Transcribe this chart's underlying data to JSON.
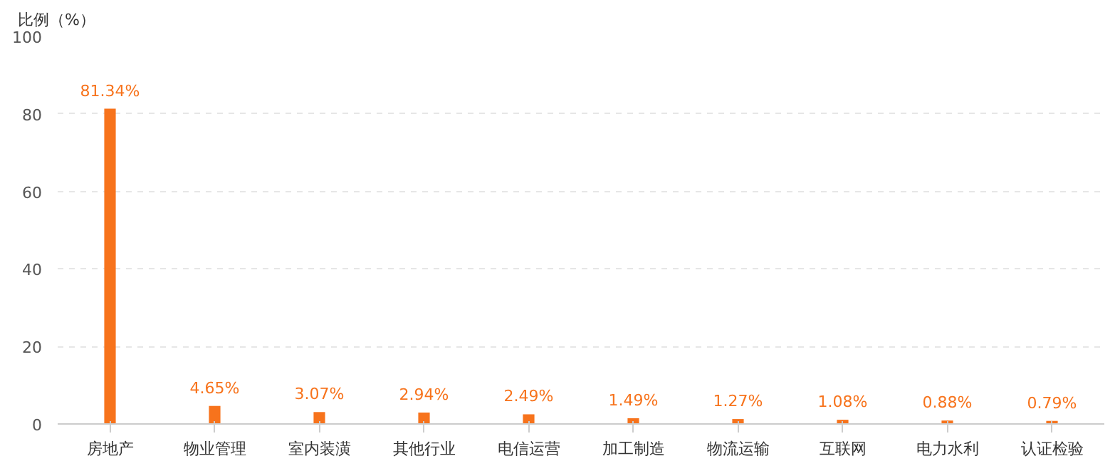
{
  "chart_data": {
    "type": "bar",
    "ylabel": "比例（%）",
    "categories": [
      "房地产",
      "物业管理",
      "室内装潢",
      "其他行业",
      "电信运营",
      "加工制造",
      "物流运输",
      "互联网",
      "电力水利",
      "认证检验"
    ],
    "values": [
      81.34,
      4.65,
      3.07,
      2.94,
      2.49,
      1.49,
      1.27,
      1.08,
      0.88,
      0.79
    ],
    "value_labels": [
      "81.34%",
      "4.65%",
      "3.07%",
      "2.94%",
      "2.49%",
      "1.49%",
      "1.27%",
      "1.08%",
      "0.88%",
      "0.79%"
    ],
    "color": "#f7731c",
    "ylim": [
      0,
      100
    ],
    "yticks": [
      0,
      20,
      40,
      60,
      80,
      100
    ],
    "grid": "y"
  }
}
